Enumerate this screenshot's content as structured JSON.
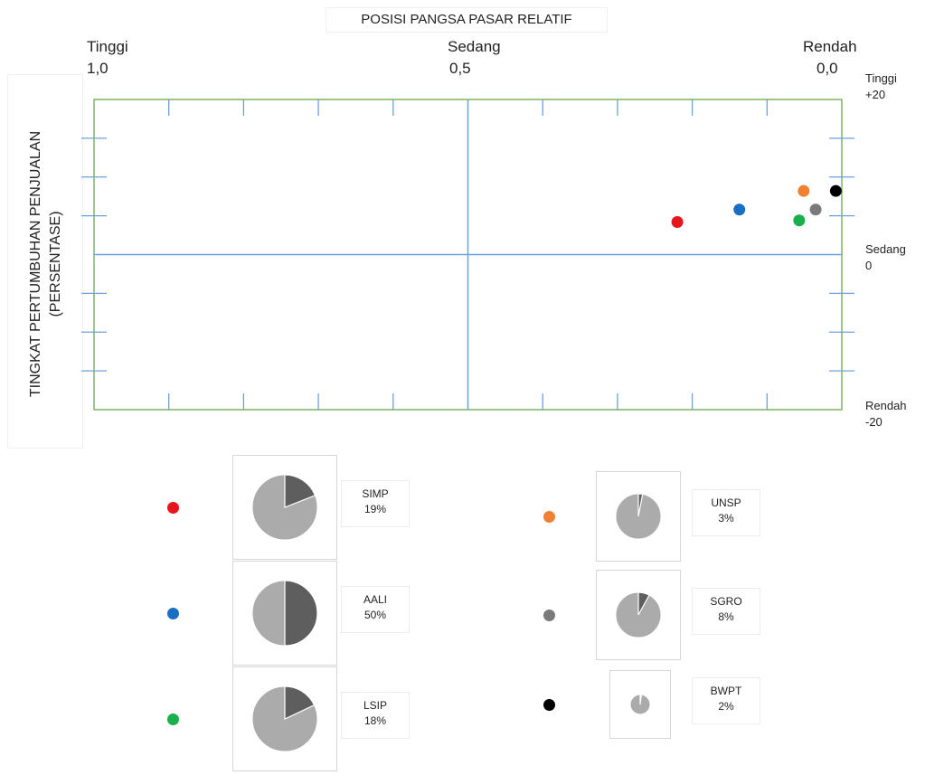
{
  "chart_data": {
    "type": "scatter",
    "title": "POSISI PANGSA PASAR RELATIF",
    "ylabel": [
      "TINGKAT PERTUMBUHAN PENJUALAN",
      "(PERSENTASE)"
    ],
    "x_axis": {
      "direction": "reversed",
      "range": [
        1.0,
        0.0
      ],
      "labels": [
        {
          "name": "Tinggi",
          "value_text": "1,0",
          "value": 1.0
        },
        {
          "name": "Sedang",
          "value_text": "0,5",
          "value": 0.5
        },
        {
          "name": "Rendah",
          "value_text": "0,0",
          "value": 0.0
        }
      ]
    },
    "y_axis": {
      "range": [
        -20,
        20
      ],
      "labels": [
        {
          "name": "Tinggi",
          "value_text": "+20",
          "value": 20
        },
        {
          "name": "Sedang",
          "value_text": "0",
          "value": 0
        },
        {
          "name": "Rendah",
          "value_text": "-20",
          "value": -20
        }
      ]
    },
    "grid": false,
    "points": [
      {
        "name": "SIMP",
        "share_text": "19%",
        "share": 0.19,
        "x": 0.22,
        "y": 4.2,
        "color": "#e8161b"
      },
      {
        "name": "AALI",
        "share_text": "50%",
        "share": 0.5,
        "x": 0.137,
        "y": 5.8,
        "color": "#1a6fc4"
      },
      {
        "name": "LSIP",
        "share_text": "18%",
        "share": 0.18,
        "x": 0.057,
        "y": 4.4,
        "color": "#18b04b"
      },
      {
        "name": "UNSP",
        "share_text": "3%",
        "share": 0.03,
        "x": 0.051,
        "y": 8.2,
        "color": "#ee8232"
      },
      {
        "name": "SGRO",
        "share_text": "8%",
        "share": 0.08,
        "x": 0.035,
        "y": 5.8,
        "color": "#7a7a7a"
      },
      {
        "name": "BWPT",
        "share_text": "2%",
        "share": 0.02,
        "x": 0.008,
        "y": 8.2,
        "color": "#000000"
      }
    ],
    "pie_colors": {
      "share": "#5e5e5e",
      "rest": "#ababab"
    }
  }
}
